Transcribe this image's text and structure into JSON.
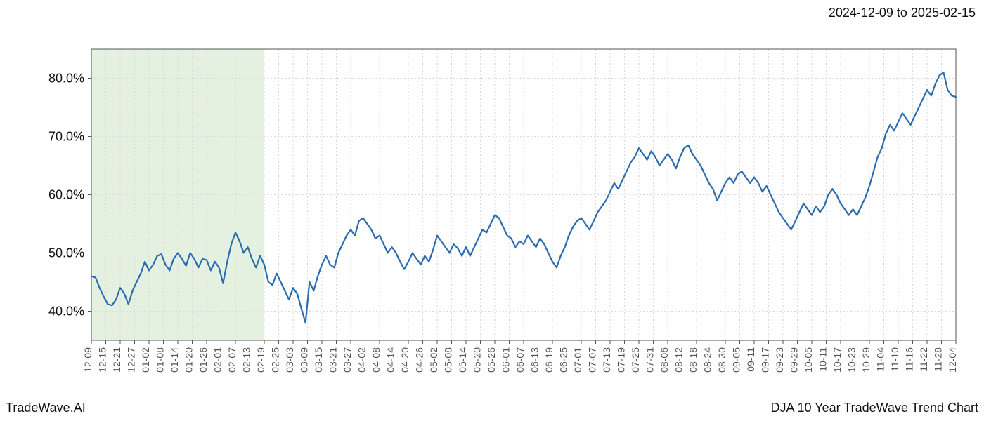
{
  "header": {
    "date_range": "2024-12-09 to 2025-02-15"
  },
  "footer": {
    "left": "TradeWave.AI",
    "right": "DJA 10 Year TradeWave Trend Chart"
  },
  "chart": {
    "type": "line",
    "line_color": "#2b6cb0",
    "line_width": 2.2,
    "background_color": "#ffffff",
    "grid_color": "#d8d8d8",
    "grid_dash": "2,3",
    "highlight_band": {
      "start_index": 0,
      "end_index": 12,
      "fill_color": "#d6e9d0",
      "fill_opacity": 0.65
    },
    "ylim": [
      35,
      85
    ],
    "yticks": [
      40,
      50,
      60,
      70,
      80
    ],
    "ytick_format": "{v}.0%",
    "ytick_fontsize": 18,
    "xtick_labels": [
      "12-09",
      "12-15",
      "12-21",
      "12-27",
      "01-02",
      "01-08",
      "01-14",
      "01-20",
      "01-26",
      "02-01",
      "02-07",
      "02-13",
      "02-19",
      "02-25",
      "03-03",
      "03-09",
      "03-15",
      "03-21",
      "03-27",
      "04-02",
      "04-08",
      "04-14",
      "04-20",
      "04-26",
      "05-02",
      "05-08",
      "05-14",
      "05-20",
      "05-26",
      "06-01",
      "06-07",
      "06-13",
      "06-19",
      "06-25",
      "07-01",
      "07-07",
      "07-13",
      "07-19",
      "07-25",
      "07-31",
      "08-06",
      "08-12",
      "08-18",
      "08-24",
      "08-30",
      "09-05",
      "09-11",
      "09-17",
      "09-23",
      "09-29",
      "10-05",
      "10-11",
      "10-17",
      "10-23",
      "10-29",
      "11-04",
      "11-10",
      "11-16",
      "11-22",
      "11-28",
      "12-04"
    ],
    "xtick_fontsize": 14,
    "xtick_rotation": -90,
    "series": [
      46.0,
      45.8,
      44.0,
      42.5,
      41.2,
      41.0,
      42.0,
      44.0,
      43.0,
      41.2,
      43.5,
      45.0,
      46.5,
      48.5,
      47.0,
      48.0,
      49.5,
      49.8,
      48.0,
      47.0,
      49.0,
      50.0,
      49.0,
      47.8,
      50.0,
      49.0,
      47.5,
      49.0,
      48.8,
      47.0,
      48.5,
      47.5,
      44.8,
      48.5,
      51.5,
      53.5,
      52.0,
      50.0,
      51.0,
      49.0,
      47.5,
      49.5,
      48.0,
      45.0,
      44.5,
      46.5,
      45.0,
      43.5,
      42.0,
      44.0,
      43.0,
      40.5,
      38.0,
      45.0,
      43.5,
      46.0,
      48.0,
      49.5,
      48.0,
      47.5,
      50.0,
      51.5,
      53.0,
      54.0,
      53.0,
      55.5,
      56.0,
      55.0,
      54.0,
      52.5,
      53.0,
      51.5,
      50.0,
      51.0,
      50.0,
      48.5,
      47.2,
      48.5,
      50.0,
      49.0,
      48.0,
      49.5,
      48.5,
      50.5,
      53.0,
      52.0,
      51.0,
      50.0,
      51.5,
      50.8,
      49.5,
      51.0,
      49.5,
      51.0,
      52.5,
      54.0,
      53.5,
      55.0,
      56.5,
      56.0,
      54.5,
      53.0,
      52.5,
      51.0,
      52.0,
      51.5,
      53.0,
      52.0,
      51.0,
      52.5,
      51.5,
      50.0,
      48.5,
      47.5,
      49.5,
      51.0,
      53.0,
      54.5,
      55.5,
      56.0,
      55.0,
      54.0,
      55.5,
      57.0,
      58.0,
      59.0,
      60.5,
      62.0,
      61.0,
      62.5,
      64.0,
      65.5,
      66.5,
      68.0,
      67.0,
      66.0,
      67.5,
      66.5,
      65.0,
      66.0,
      67.0,
      66.0,
      64.5,
      66.5,
      68.0,
      68.5,
      67.0,
      66.0,
      65.0,
      63.5,
      62.0,
      61.0,
      59.0,
      60.5,
      62.0,
      63.0,
      62.0,
      63.5,
      64.0,
      63.0,
      62.0,
      63.0,
      62.0,
      60.5,
      61.5,
      60.0,
      58.5,
      57.0,
      56.0,
      55.0,
      54.0,
      55.5,
      57.0,
      58.5,
      57.5,
      56.5,
      58.0,
      57.0,
      58.0,
      60.0,
      61.0,
      60.0,
      58.5,
      57.5,
      56.5,
      57.5,
      56.5,
      58.0,
      59.5,
      61.5,
      64.0,
      66.5,
      68.0,
      70.5,
      72.0,
      71.0,
      72.5,
      74.0,
      73.0,
      72.0,
      73.5,
      75.0,
      76.5,
      78.0,
      77.0,
      79.0,
      80.5,
      81.0,
      78.0,
      77.0,
      76.8
    ]
  }
}
